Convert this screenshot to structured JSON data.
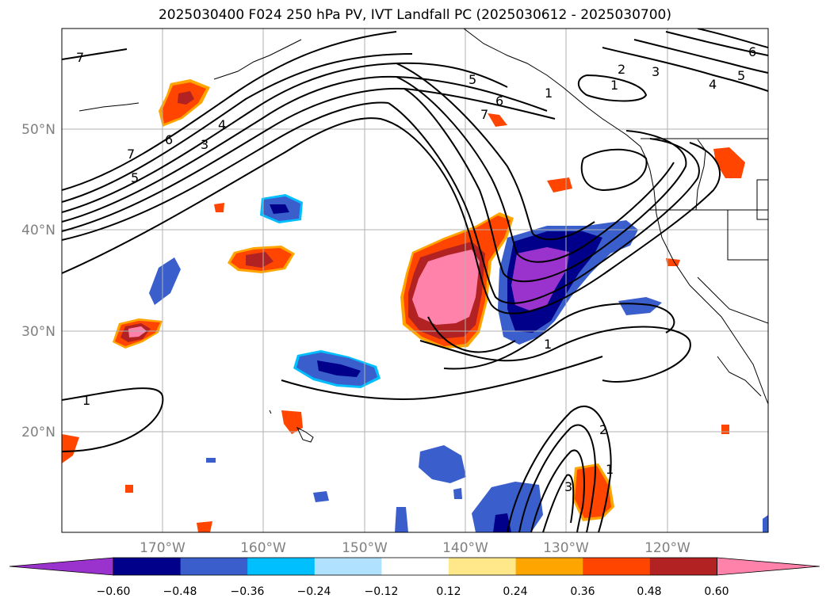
{
  "title": "2025030400 F024 250 hPa PV, IVT Landfall PC (2025030612 - 2025030700)",
  "lat_labels": [
    "50°N",
    "40°N",
    "30°N",
    "20°N"
  ],
  "lon_labels": [
    "170°W",
    "160°W",
    "150°W",
    "140°W",
    "130°W",
    "120°W"
  ],
  "colorbar": {
    "colors": [
      "#9a32cd",
      "#00008b",
      "#3a5fcd",
      "#00bfff",
      "#b0e2ff",
      "#ffffff",
      "#ffe88a",
      "#ffa500",
      "#ff4500",
      "#b22222",
      "#ff82ab"
    ],
    "tick_labels": [
      "−0.60",
      "−0.48",
      "−0.36",
      "−0.24",
      "−0.12",
      "0.12",
      "0.24",
      "0.36",
      "0.48",
      "0.60"
    ]
  },
  "contour_labels": [
    "7",
    "7",
    "6",
    "5",
    "4",
    "3",
    "5",
    "6",
    "7",
    "1",
    "2",
    "3",
    "1",
    "4",
    "5",
    "6",
    "1",
    "1",
    "2",
    "1",
    "3"
  ],
  "colors": {
    "contour": "#000000",
    "grid": "#b0b0b0",
    "coast": "#000000"
  }
}
